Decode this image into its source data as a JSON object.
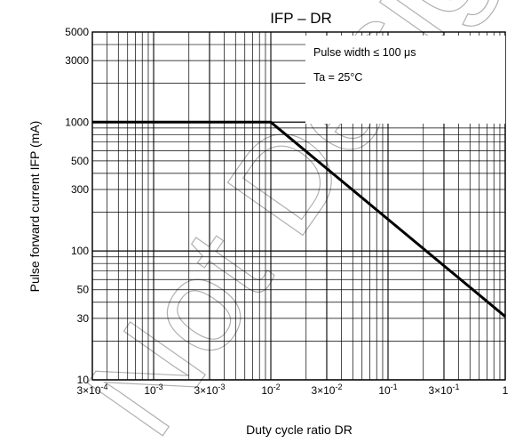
{
  "chart_data": {
    "type": "line",
    "title": "IFP – DR",
    "xlabel": "Duty cycle ratio   DR",
    "ylabel": "Pulse forward current   IFP   (mA)",
    "x_scale": "log",
    "y_scale": "log",
    "xlim": [
      0.0003,
      1
    ],
    "ylim": [
      10,
      5000
    ],
    "grid": true,
    "x_tick_labels": [
      "3×10-4",
      "10-3",
      "3×10-3",
      "10-2",
      "3×10-2",
      "10-1",
      "3×10-1",
      "1"
    ],
    "y_tick_labels": [
      "10",
      "30",
      "50",
      "100",
      "300",
      "500",
      "1000",
      "3000",
      "5000"
    ],
    "annotations": [
      "Pulse width ≤ 100 μs",
      "Ta = 25°C"
    ],
    "series": [
      {
        "x": [
          0.0003,
          0.01,
          1
        ],
        "y": [
          1000,
          1000,
          31
        ]
      }
    ]
  },
  "watermark": "Not Design"
}
